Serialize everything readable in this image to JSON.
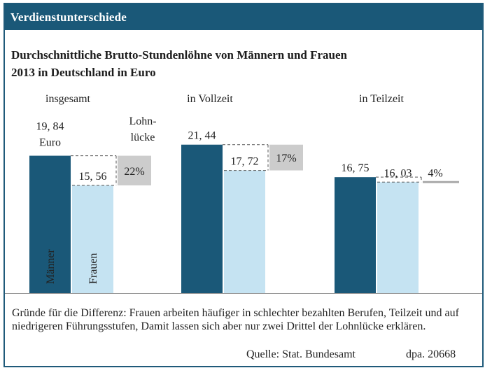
{
  "header": {
    "label": "Verdienstunterschiede"
  },
  "title": {
    "line1": "Durchschnittliche Brutto-Stundenlöhne von Männern und Frauen",
    "line2": "2013 in Deutschland in Euro"
  },
  "colors": {
    "men": "#1a5878",
    "women": "#c5e3f2",
    "gap_box": "#cccccc",
    "banner": "#1a5878"
  },
  "chart_data": {
    "type": "bar",
    "categories": [
      "insgesamt",
      "in Vollzeit",
      "in Teilzeit"
    ],
    "series": [
      {
        "name": "Männer",
        "values": [
          19.84,
          21.44,
          16.75
        ]
      },
      {
        "name": "Frauen",
        "values": [
          15.56,
          17.72,
          16.03
        ]
      }
    ],
    "value_labels": {
      "men": [
        "19, 84",
        "21, 44",
        "16, 75"
      ],
      "women": [
        "15, 56",
        "17, 72",
        "16, 03"
      ]
    },
    "unit_label": "Euro",
    "gap_title": [
      "Lohn-",
      "lücke"
    ],
    "gap_labels": [
      "22%",
      "17%",
      "4%"
    ],
    "ylim": [
      0,
      25
    ]
  },
  "footer": {
    "explanation": "Gründe für die Differenz: Frauen arbeiten häufiger in schlechter bezahlten Berufen, Teilzeit und  auf niedrigeren Führungsstufen, Damit lassen sich aber nur zwei Drittel der Lohnlücke erklären.",
    "source": "Quelle: Stat. Bundesamt",
    "agency": "dpa. 20668"
  }
}
